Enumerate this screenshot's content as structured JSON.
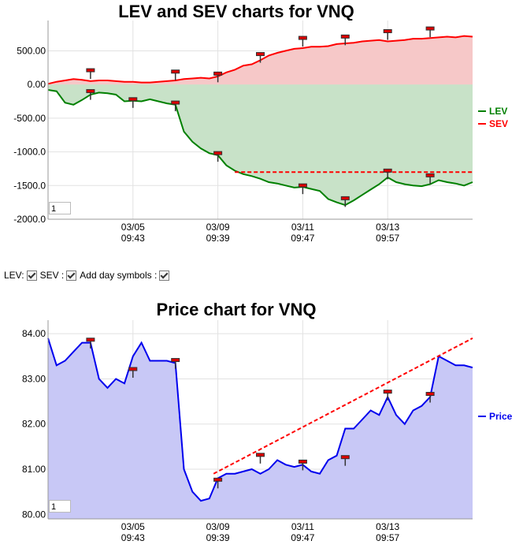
{
  "controls": {
    "lev_label": "LEV:",
    "sev_label": "SEV :",
    "day_symbols_label": "Add day symbols :",
    "lev_checked": true,
    "sev_checked": true,
    "day_symbols_checked": true
  },
  "chart_data": [
    {
      "type": "area",
      "title": "LEV and SEV charts for VNQ",
      "ylim": [
        -2000,
        950
      ],
      "yticks": [
        "500.00",
        "0.00",
        "-500.00",
        "-1000.0",
        "-1500.0",
        "-2000.0"
      ],
      "ytick_values": [
        500,
        0,
        -500,
        -1000,
        -1500,
        -2000
      ],
      "xtick_labels": [
        [
          "03/05",
          "09:43"
        ],
        [
          "03/09",
          "09:39"
        ],
        [
          "03/11",
          "09:47"
        ],
        [
          "03/13",
          "09:57"
        ]
      ],
      "xtick_positions": [
        0.2,
        0.4,
        0.6,
        0.8
      ],
      "legend": [
        "LEV",
        "SEV"
      ],
      "legend_position": "right",
      "grid": true,
      "zoom_value": "1",
      "colors": {
        "LEV": "#008000",
        "SEV": "#ff0000",
        "lev_fill": "#c8e2c8",
        "sev_fill": "#f6c8c8",
        "trend": "#ff0000"
      },
      "series": [
        {
          "name": "LEV",
          "x": [
            0,
            0.02,
            0.04,
            0.06,
            0.08,
            0.1,
            0.12,
            0.14,
            0.16,
            0.18,
            0.2,
            0.22,
            0.24,
            0.26,
            0.28,
            0.3,
            0.32,
            0.34,
            0.36,
            0.38,
            0.4,
            0.42,
            0.44,
            0.46,
            0.48,
            0.5,
            0.52,
            0.54,
            0.56,
            0.58,
            0.6,
            0.62,
            0.64,
            0.66,
            0.68,
            0.7,
            0.72,
            0.74,
            0.76,
            0.78,
            0.8,
            0.82,
            0.84,
            0.86,
            0.88,
            0.9,
            0.92,
            0.94,
            0.96,
            0.98,
            1.0
          ],
          "values": [
            -80,
            -100,
            -270,
            -300,
            -230,
            -150,
            -120,
            -130,
            -150,
            -250,
            -240,
            -250,
            -220,
            -250,
            -280,
            -300,
            -700,
            -850,
            -950,
            -1020,
            -1050,
            -1200,
            -1280,
            -1330,
            -1360,
            -1400,
            -1450,
            -1470,
            -1500,
            -1530,
            -1520,
            -1550,
            -1580,
            -1700,
            -1750,
            -1790,
            -1720,
            -1640,
            -1560,
            -1480,
            -1380,
            -1450,
            -1480,
            -1500,
            -1510,
            -1480,
            -1420,
            -1450,
            -1470,
            -1500,
            -1450
          ]
        },
        {
          "name": "SEV",
          "x": [
            0,
            0.02,
            0.04,
            0.06,
            0.08,
            0.1,
            0.12,
            0.14,
            0.16,
            0.18,
            0.2,
            0.22,
            0.24,
            0.26,
            0.28,
            0.3,
            0.32,
            0.34,
            0.36,
            0.38,
            0.4,
            0.42,
            0.44,
            0.46,
            0.48,
            0.5,
            0.52,
            0.54,
            0.56,
            0.58,
            0.6,
            0.62,
            0.64,
            0.66,
            0.68,
            0.7,
            0.72,
            0.74,
            0.76,
            0.78,
            0.8,
            0.82,
            0.84,
            0.86,
            0.88,
            0.9,
            0.92,
            0.94,
            0.96,
            0.98,
            1.0
          ],
          "values": [
            10,
            40,
            60,
            80,
            70,
            50,
            60,
            60,
            50,
            40,
            40,
            30,
            30,
            40,
            50,
            60,
            80,
            90,
            100,
            90,
            120,
            180,
            220,
            280,
            300,
            360,
            430,
            470,
            500,
            530,
            540,
            560,
            560,
            570,
            600,
            610,
            620,
            640,
            650,
            660,
            640,
            650,
            660,
            680,
            680,
            690,
            700,
            710,
            700,
            720,
            710
          ]
        }
      ],
      "symbols_lev": [
        {
          "x": 0.1,
          "y": -110
        },
        {
          "x": 0.2,
          "y": -230
        },
        {
          "x": 0.3,
          "y": -280
        },
        {
          "x": 0.4,
          "y": -1030
        },
        {
          "x": 0.6,
          "y": -1510
        },
        {
          "x": 0.7,
          "y": -1700
        },
        {
          "x": 0.8,
          "y": -1290
        },
        {
          "x": 0.9,
          "y": -1360
        }
      ],
      "symbols_sev": [
        {
          "x": 0.1,
          "y": 200
        },
        {
          "x": 0.3,
          "y": 180
        },
        {
          "x": 0.4,
          "y": 150
        },
        {
          "x": 0.5,
          "y": 440
        },
        {
          "x": 0.6,
          "y": 680
        },
        {
          "x": 0.7,
          "y": 700
        },
        {
          "x": 0.8,
          "y": 780
        },
        {
          "x": 0.9,
          "y": 820
        }
      ],
      "trend_line": {
        "x": [
          0.44,
          1.0
        ],
        "y": [
          -1300,
          -1300
        ]
      }
    },
    {
      "type": "area",
      "title": "Price chart for VNQ",
      "ylim": [
        79.9,
        84.3
      ],
      "yticks": [
        "84.00",
        "83.00",
        "82.00",
        "81.00",
        "80.00"
      ],
      "ytick_values": [
        84,
        83,
        82,
        81,
        80
      ],
      "xtick_labels": [
        [
          "03/05",
          "09:43"
        ],
        [
          "03/09",
          "09:39"
        ],
        [
          "03/11",
          "09:47"
        ],
        [
          "03/13",
          "09:57"
        ]
      ],
      "xtick_positions": [
        0.2,
        0.4,
        0.6,
        0.8
      ],
      "legend": [
        "Price"
      ],
      "legend_position": "right",
      "grid": true,
      "zoom_value": "1",
      "colors": {
        "Price": "#0000ee",
        "fill": "#c8c8f6",
        "trend": "#ff0000"
      },
      "series": [
        {
          "name": "Price",
          "x": [
            0,
            0.02,
            0.04,
            0.06,
            0.08,
            0.1,
            0.12,
            0.14,
            0.16,
            0.18,
            0.2,
            0.22,
            0.24,
            0.26,
            0.28,
            0.3,
            0.32,
            0.34,
            0.36,
            0.38,
            0.4,
            0.42,
            0.44,
            0.46,
            0.48,
            0.5,
            0.52,
            0.54,
            0.56,
            0.58,
            0.6,
            0.62,
            0.64,
            0.66,
            0.68,
            0.7,
            0.72,
            0.74,
            0.76,
            0.78,
            0.8,
            0.82,
            0.84,
            0.86,
            0.88,
            0.9,
            0.92,
            0.94,
            0.96,
            0.98,
            1.0
          ],
          "values": [
            83.9,
            83.3,
            83.4,
            83.6,
            83.8,
            83.8,
            83.0,
            82.8,
            83.0,
            82.9,
            83.5,
            83.8,
            83.4,
            83.4,
            83.4,
            83.35,
            81.0,
            80.5,
            80.3,
            80.35,
            80.8,
            80.9,
            80.9,
            80.95,
            81.0,
            80.9,
            81.0,
            81.2,
            81.1,
            81.05,
            81.1,
            80.95,
            80.9,
            81.2,
            81.3,
            81.9,
            81.9,
            82.1,
            82.3,
            82.2,
            82.6,
            82.2,
            82.0,
            82.3,
            82.4,
            82.6,
            83.5,
            83.4,
            83.3,
            83.3,
            83.25
          ]
        }
      ],
      "symbols": [
        {
          "x": 0.1,
          "y": 83.85
        },
        {
          "x": 0.2,
          "y": 83.2
        },
        {
          "x": 0.3,
          "y": 83.4
        },
        {
          "x": 0.4,
          "y": 80.75
        },
        {
          "x": 0.5,
          "y": 81.3
        },
        {
          "x": 0.6,
          "y": 81.15
        },
        {
          "x": 0.7,
          "y": 81.25
        },
        {
          "x": 0.8,
          "y": 82.7
        },
        {
          "x": 0.9,
          "y": 82.65
        }
      ],
      "trend_line": {
        "x": [
          0.39,
          1.0
        ],
        "y": [
          80.9,
          83.9
        ]
      }
    }
  ]
}
